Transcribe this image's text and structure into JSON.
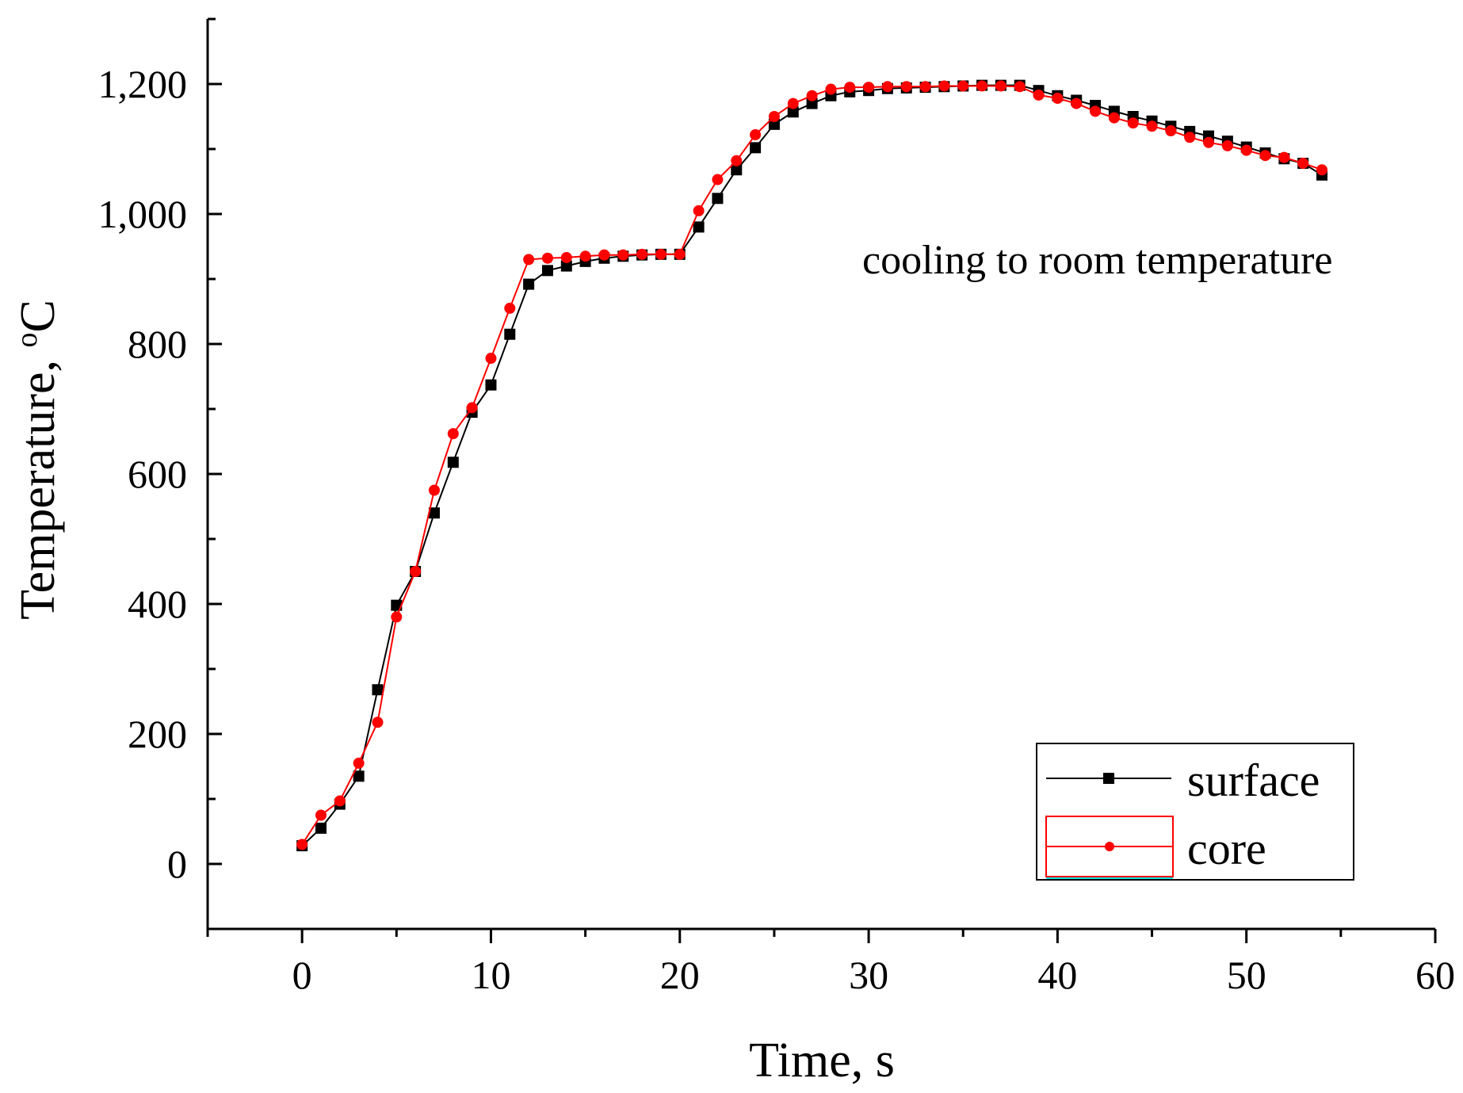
{
  "chart_data": {
    "type": "line",
    "title": "",
    "xlabel": "Time, s",
    "ylabel": "Temperature, °C",
    "ylabel_main": "Temperature, ",
    "ylabel_degree": "o",
    "ylabel_unit": "C",
    "xlim": [
      -5,
      60
    ],
    "ylim": [
      -100,
      1300
    ],
    "x_ticks": [
      0,
      10,
      20,
      30,
      40,
      50,
      60
    ],
    "x_tick_labels": [
      "0",
      "10",
      "20",
      "30",
      "40",
      "50",
      "60"
    ],
    "y_ticks": [
      0,
      200,
      400,
      600,
      800,
      1000,
      1200
    ],
    "y_tick_labels": [
      "0",
      "200",
      "400",
      "600",
      "800",
      "1,000",
      "1,200"
    ],
    "annotation": "cooling to room temperature",
    "legend_position": "bottom-right",
    "x": [
      0,
      1,
      2,
      3,
      4,
      5,
      6,
      7,
      8,
      9,
      10,
      11,
      12,
      13,
      14,
      15,
      16,
      17,
      18,
      19,
      20,
      21,
      22,
      23,
      24,
      25,
      26,
      27,
      28,
      29,
      30,
      31,
      32,
      33,
      34,
      35,
      36,
      37,
      38,
      39,
      40,
      41,
      42,
      43,
      44,
      45,
      46,
      47,
      48,
      49,
      50,
      51,
      52,
      53,
      54
    ],
    "series": [
      {
        "name": "surface",
        "color": "#000000",
        "marker": "square",
        "values": [
          28,
          55,
          92,
          135,
          268,
          398,
          450,
          540,
          618,
          695,
          737,
          815,
          892,
          913,
          920,
          927,
          932,
          935,
          937,
          938,
          938,
          980,
          1024,
          1068,
          1102,
          1138,
          1157,
          1170,
          1182,
          1188,
          1190,
          1193,
          1194,
          1195,
          1196,
          1197,
          1198,
          1198,
          1198,
          1190,
          1182,
          1175,
          1167,
          1158,
          1150,
          1143,
          1135,
          1127,
          1120,
          1112,
          1103,
          1094,
          1085,
          1078,
          1060
        ]
      },
      {
        "name": "core",
        "color": "#ff0000",
        "marker": "circle",
        "values": [
          30,
          75,
          97,
          155,
          218,
          380,
          450,
          575,
          662,
          702,
          778,
          855,
          930,
          932,
          933,
          935,
          937,
          937,
          938,
          938,
          938,
          1005,
          1053,
          1082,
          1122,
          1150,
          1170,
          1182,
          1192,
          1195,
          1195,
          1196,
          1196,
          1196,
          1197,
          1197,
          1197,
          1197,
          1196,
          1183,
          1178,
          1170,
          1158,
          1148,
          1140,
          1135,
          1128,
          1118,
          1110,
          1105,
          1098,
          1090,
          1087,
          1078,
          1068
        ]
      }
    ]
  }
}
